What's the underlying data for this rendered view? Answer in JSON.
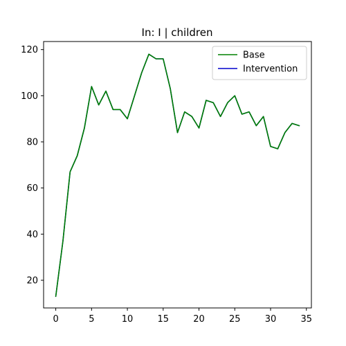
{
  "chart_data": {
    "type": "line",
    "title": "In: I | children",
    "xlabel": "",
    "ylabel": "",
    "xlim": [
      -1.7,
      35.7
    ],
    "ylim": [
      8,
      123.5
    ],
    "xticks": [
      0,
      5,
      10,
      15,
      20,
      25,
      30,
      35
    ],
    "yticks": [
      20,
      40,
      60,
      80,
      100,
      120
    ],
    "grid": false,
    "legend_position": "top-right",
    "x": [
      0,
      1,
      2,
      3,
      4,
      5,
      6,
      7,
      8,
      9,
      10,
      11,
      12,
      13,
      14,
      15,
      16,
      17,
      18,
      19,
      20,
      21,
      22,
      23,
      24,
      25,
      26,
      27,
      28,
      29,
      30,
      31,
      32,
      33,
      34
    ],
    "series": [
      {
        "name": "Base",
        "color": "#008000",
        "values": [
          13,
          37,
          67,
          74,
          86,
          104,
          96,
          102,
          94,
          94,
          90,
          100,
          110,
          118,
          116,
          116,
          103,
          84,
          93,
          91,
          86,
          98,
          97,
          91,
          97,
          100,
          92,
          93,
          87,
          91,
          78,
          77,
          84,
          88,
          87
        ]
      },
      {
        "name": "Intervention",
        "color": "#0000cc",
        "values": [
          13,
          37,
          67,
          74,
          86,
          104,
          96,
          102,
          94,
          94,
          90,
          100,
          110,
          118,
          116,
          116,
          103,
          84,
          93,
          91,
          86,
          98,
          97,
          91,
          97,
          100,
          92,
          93,
          87,
          91,
          78,
          77,
          84,
          88,
          87
        ]
      }
    ]
  }
}
